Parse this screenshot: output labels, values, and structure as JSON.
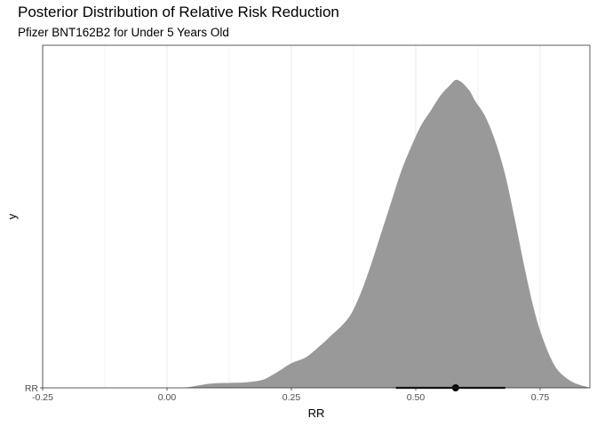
{
  "chart_data": {
    "type": "area",
    "title": "Posterior Distribution of Relative Risk Reduction",
    "subtitle": "Pfizer BNT162B2 for Under 5 Years Old",
    "xlabel": "RR",
    "ylabel": "y",
    "xlim": [
      -0.25,
      0.85
    ],
    "x_ticks": [
      -0.25,
      0.0,
      0.25,
      0.5,
      0.75
    ],
    "x_tick_labels": [
      "-0.25",
      "0.00",
      "0.25",
      "0.50",
      "0.75"
    ],
    "y_ticks": [
      "RR"
    ],
    "grid": true,
    "density_color": "#999999",
    "interval_color": "#000000",
    "density": {
      "x": [
        0.03,
        0.05,
        0.08,
        0.1,
        0.13,
        0.16,
        0.19,
        0.21,
        0.23,
        0.25,
        0.28,
        0.31,
        0.33,
        0.35,
        0.37,
        0.39,
        0.41,
        0.43,
        0.45,
        0.47,
        0.49,
        0.51,
        0.53,
        0.55,
        0.57,
        0.58,
        0.59,
        0.6,
        0.61,
        0.62,
        0.64,
        0.66,
        0.68,
        0.7,
        0.72,
        0.74,
        0.76,
        0.78,
        0.8,
        0.82,
        0.84,
        0.85
      ],
      "y": [
        0.0,
        0.004,
        0.012,
        0.015,
        0.016,
        0.018,
        0.025,
        0.04,
        0.06,
        0.08,
        0.1,
        0.14,
        0.17,
        0.2,
        0.24,
        0.31,
        0.4,
        0.5,
        0.6,
        0.7,
        0.78,
        0.85,
        0.9,
        0.95,
        0.985,
        1.0,
        0.995,
        0.98,
        0.96,
        0.93,
        0.88,
        0.8,
        0.69,
        0.54,
        0.38,
        0.24,
        0.14,
        0.07,
        0.035,
        0.015,
        0.005,
        0.0
      ]
    },
    "interval": {
      "lower": 0.46,
      "upper": 0.68,
      "point": 0.58
    }
  }
}
